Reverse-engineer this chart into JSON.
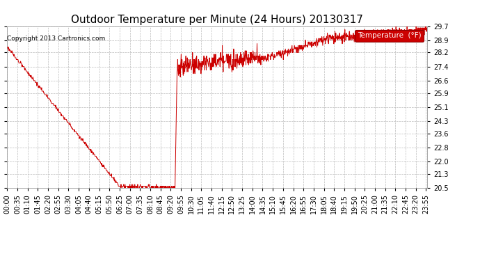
{
  "title": "Outdoor Temperature per Minute (24 Hours) 20130317",
  "copyright_text": "Copyright 2013 Cartronics.com",
  "legend_label": "Temperature  (°F)",
  "legend_bg": "#cc0000",
  "legend_text_color": "#ffffff",
  "line_color": "#cc0000",
  "bg_color": "#ffffff",
  "plot_bg_color": "#ffffff",
  "grid_color": "#bbbbbb",
  "y_ticks": [
    20.5,
    21.3,
    22.0,
    22.8,
    23.6,
    24.3,
    25.1,
    25.9,
    26.6,
    27.4,
    28.2,
    28.9,
    29.7
  ],
  "y_min": 20.5,
  "y_max": 29.7,
  "x_tick_step": 35,
  "title_fontsize": 11,
  "tick_fontsize": 7,
  "copyright_fontsize": 6.5
}
